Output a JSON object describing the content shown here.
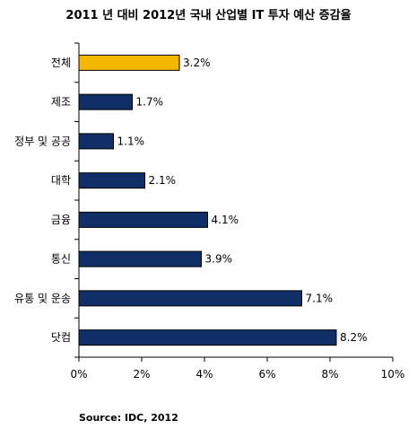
{
  "chart_data": {
    "type": "bar",
    "orientation": "horizontal",
    "title": "2011 년 대비 2012년 국내 산업별 IT 투자 예산 증감율",
    "categories": [
      "전체",
      "제조",
      "정부 및 공공",
      "대학",
      "금융",
      "통신",
      "유통 및 운송",
      "닷컴"
    ],
    "values": [
      3.2,
      1.7,
      1.1,
      2.1,
      4.1,
      3.9,
      7.1,
      8.2
    ],
    "data_labels": [
      "3.2%",
      "1.7%",
      "1.1%",
      "2.1%",
      "4.1%",
      "3.9%",
      "7.1%",
      "8.2%"
    ],
    "xlim": [
      0,
      10
    ],
    "xticks": [
      "0%",
      "2%",
      "4%",
      "6%",
      "8%",
      "10%"
    ],
    "xlabel": "",
    "ylabel": "",
    "grid": false,
    "colors": {
      "default": "#0f2f66",
      "highlight": "#f5b800",
      "border": "#000000"
    },
    "highlight_index": 0
  },
  "source": "Source: IDC, 2012"
}
